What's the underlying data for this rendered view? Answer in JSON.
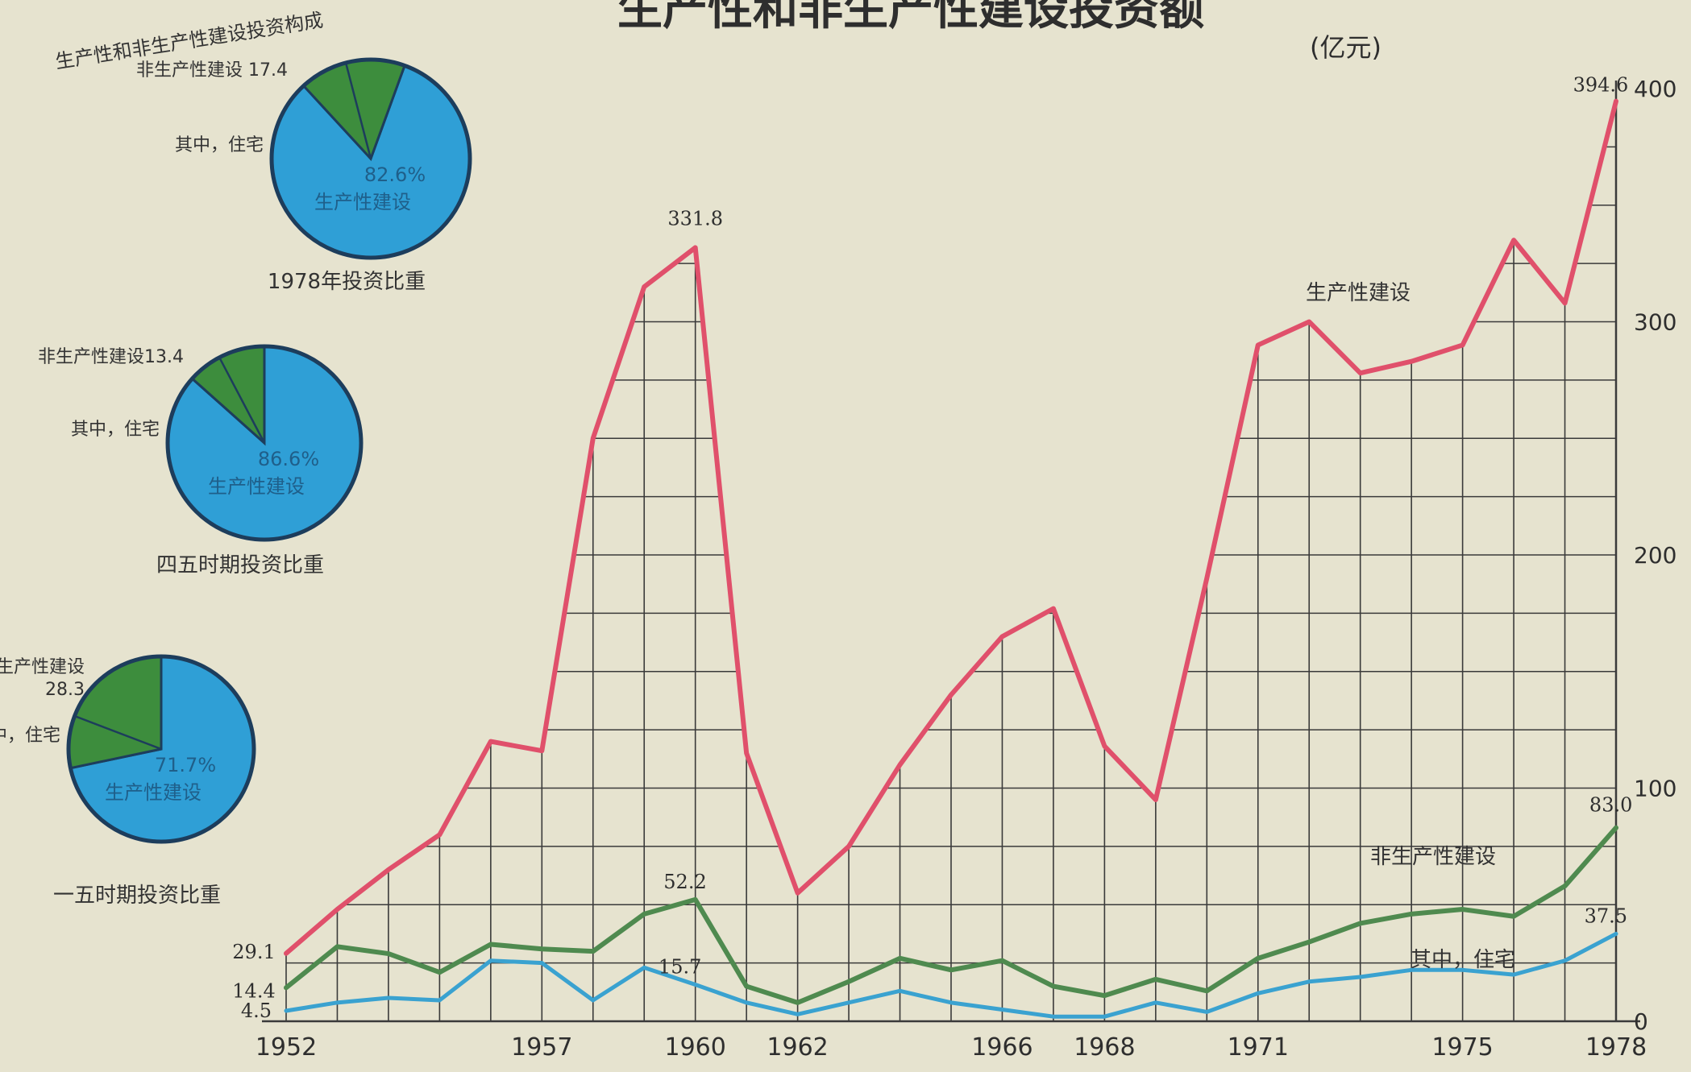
{
  "colors": {
    "background": "#e6e3cf",
    "productive": "#e0506b",
    "nonproductive": "#4f8a4f",
    "housing": "#3aa2d0",
    "pie_blue": "#2f9fd6",
    "pie_green": "#3d8d3d",
    "grid": "#3a3a3a"
  },
  "chart_data": [
    {
      "type": "line",
      "title": "生产性和非生产性建设投资额",
      "unit_label": "(亿元)",
      "ylim": [
        0,
        400
      ],
      "y_ticks": [
        "0",
        "100",
        "200",
        "300",
        "400"
      ],
      "x_ticks": [
        "1952",
        "1957",
        "1960",
        "1962",
        "1966",
        "1968",
        "1971",
        "1975",
        "1978"
      ],
      "grid": true,
      "x": [
        1952,
        1953,
        1954,
        1955,
        1956,
        1957,
        1958,
        1959,
        1960,
        1961,
        1962,
        1963,
        1964,
        1965,
        1966,
        1967,
        1968,
        1969,
        1970,
        1971,
        1972,
        1973,
        1974,
        1975,
        1976,
        1977,
        1978
      ],
      "series": [
        {
          "name": "生产性建设",
          "values": [
            29.1,
            48,
            65,
            80,
            120,
            116,
            250,
            315,
            331.8,
            115,
            55,
            75,
            110,
            140,
            165,
            177,
            118,
            95,
            190,
            290,
            300,
            278,
            283,
            290,
            335,
            308,
            394.6
          ]
        },
        {
          "name": "非生产性建设",
          "values": [
            14.4,
            32,
            29,
            21,
            33,
            31,
            30,
            46,
            52.2,
            15,
            8,
            17,
            27,
            22,
            26,
            15,
            11,
            18,
            13,
            27,
            34,
            42,
            46,
            48,
            45,
            58,
            83.0
          ]
        },
        {
          "name": "其中，住宅",
          "values": [
            4.5,
            8,
            10,
            9,
            26,
            25,
            9,
            23,
            15.7,
            8,
            3,
            8,
            13,
            8,
            5,
            2,
            2,
            8,
            4,
            12,
            17,
            19,
            22,
            22,
            20,
            26,
            37.5
          ]
        }
      ],
      "annotations": [
        "331.8",
        "52.2",
        "15.7",
        "394.6",
        "83.0",
        "37.5",
        "29.1",
        "14.4",
        "4.5"
      ]
    },
    {
      "type": "pie",
      "title": "1978年投资比重",
      "header": "生产性和非生产性建设投资构成",
      "slices": [
        {
          "name": "生产性建设",
          "label": "生产性建设",
          "value": 82.6,
          "value_label": "82.6%"
        },
        {
          "name": "非生产性建设",
          "label": "非生产性建设 17.4",
          "value": 17.4
        },
        {
          "name": "其中，住宅",
          "label": "其中，住宅",
          "value": 7.8
        }
      ]
    },
    {
      "type": "pie",
      "title": "四五时期投资比重",
      "slices": [
        {
          "name": "生产性建设",
          "label": "生产性建设",
          "value": 86.6,
          "value_label": "86.6%"
        },
        {
          "name": "非生产性建设",
          "label": "非生产性建设13.4",
          "value": 13.4
        },
        {
          "name": "其中，住宅",
          "label": "其中，住宅",
          "value": 5.7
        }
      ]
    },
    {
      "type": "pie",
      "title": "一五时期投资比重",
      "slices": [
        {
          "name": "生产性建设",
          "label": "生产性建设",
          "value": 71.7,
          "value_label": "71.7%"
        },
        {
          "name": "非生产性建设",
          "label": "非生产性建设",
          "value_text": "28.3",
          "value": 28.3
        },
        {
          "name": "其中，住宅",
          "label": "其中，住宅",
          "value": 9.1
        }
      ]
    }
  ]
}
